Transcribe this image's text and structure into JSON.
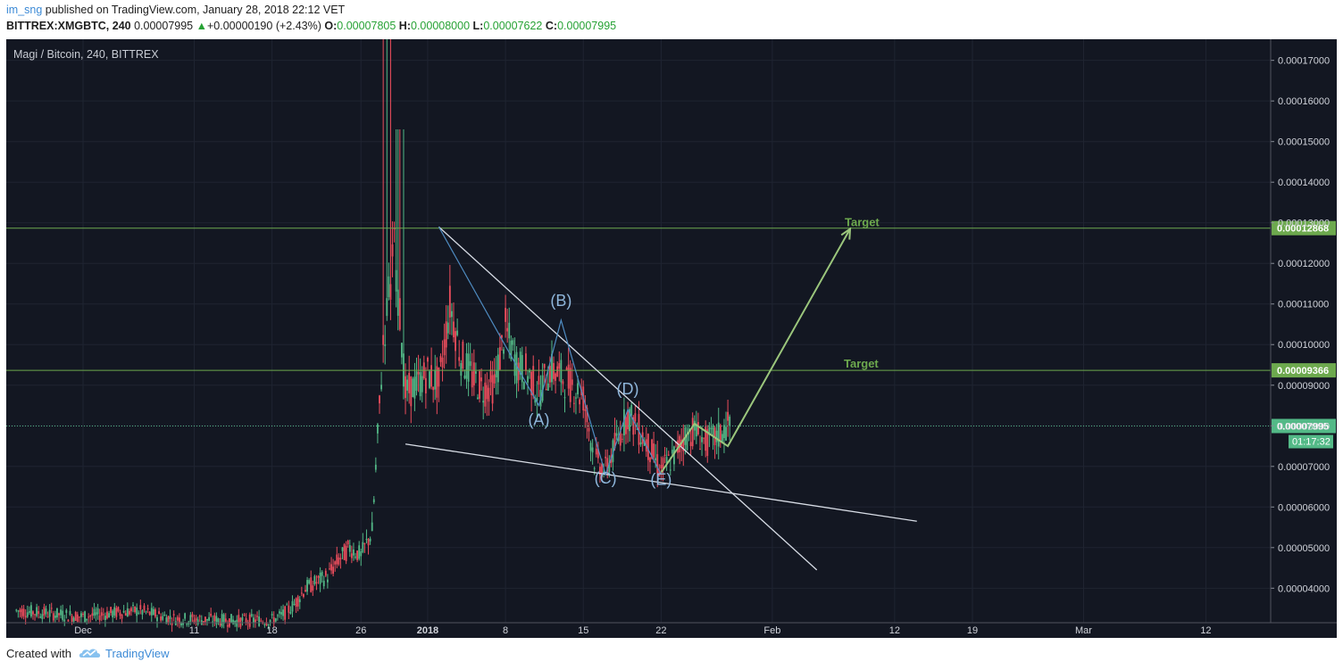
{
  "header": {
    "author": "im_sng",
    "published": "published on TradingView.com, January 28, 2018 22:12 VET",
    "symbol": "BITTREX:XMGBTC, 240",
    "last": "0.00007995",
    "change": "+0.00000190 (+2.43%)",
    "o_label": "O:",
    "o_value": "0.00007805",
    "h_label": "H:",
    "h_value": "0.00008000",
    "l_label": "L:",
    "l_value": "0.00007622",
    "c_label": "C:",
    "c_value": "0.00007995"
  },
  "footer": {
    "created_with": "Created with",
    "brand": "TradingView"
  },
  "colors": {
    "background": "#131722",
    "grid": "#1f2431",
    "up": "#53b987",
    "down": "#eb4d5c",
    "target_line": "#6da94e",
    "pattern_line": "#4f8cc2",
    "trend_line": "#d8dde6",
    "arrow": "#9bc67c"
  },
  "chart_data": {
    "type": "candlestick",
    "title": "Magi / Bitcoin, 240, BITTREX",
    "timeframe": "240",
    "y_ticks": [
      "0.00004000",
      "0.00005000",
      "0.00006000",
      "0.00007000",
      "0.00008000",
      "0.00009000",
      "0.00010000",
      "0.00011000",
      "0.00012000",
      "0.00013000",
      "0.00014000",
      "0.00015000",
      "0.00016000",
      "0.00017000"
    ],
    "y_range": [
      3.15e-05,
      0.0001752
    ],
    "x_labels": [
      {
        "label": "Dec",
        "date": "2017-12-01"
      },
      {
        "label": "11",
        "date": "2017-12-11"
      },
      {
        "label": "18",
        "date": "2017-12-18"
      },
      {
        "label": "26",
        "date": "2017-12-26"
      },
      {
        "label": "2018",
        "date": "2018-01-01"
      },
      {
        "label": "8",
        "date": "2018-01-08"
      },
      {
        "label": "15",
        "date": "2018-01-15"
      },
      {
        "label": "22",
        "date": "2018-01-22"
      },
      {
        "label": "Feb",
        "date": "2018-02-01"
      },
      {
        "label": "12",
        "date": "2018-02-12"
      },
      {
        "label": "19",
        "date": "2018-02-19"
      },
      {
        "label": "Mar",
        "date": "2018-03-01"
      },
      {
        "label": "12",
        "date": "2018-03-12"
      }
    ],
    "price_path": [
      [
        "2017-11-25",
        3.45e-05
      ],
      [
        "2017-11-29",
        3.35e-05
      ],
      [
        "2017-12-01",
        3.3e-05
      ],
      [
        "2017-12-04",
        3.4e-05
      ],
      [
        "2017-12-06",
        3.45e-05
      ],
      [
        "2017-12-09",
        3.25e-05
      ],
      [
        "2017-12-15",
        3.2e-05
      ],
      [
        "2017-12-18",
        3.22e-05
      ],
      [
        "2017-12-19",
        3.35e-05
      ],
      [
        "2017-12-20",
        3.6e-05
      ],
      [
        "2017-12-21",
        4e-05
      ],
      [
        "2017-12-23",
        4.3e-05
      ],
      [
        "2017-12-24",
        4.7e-05
      ],
      [
        "2017-12-25",
        5e-05
      ],
      [
        "2017-12-26",
        4.8e-05
      ],
      [
        "2017-12-27",
        5.4e-05
      ],
      [
        "2017-12-28",
        0.0001
      ],
      [
        "2017-12-29",
        0.000125
      ],
      [
        "2017-12-30",
        8.8e-05
      ],
      [
        "2017-12-31",
        9e-05
      ],
      [
        "2018-01-01",
        9.3e-05
      ],
      [
        "2018-01-02",
        9e-05
      ],
      [
        "2018-01-03",
        0.00011
      ],
      [
        "2018-01-04",
        9.7e-05
      ],
      [
        "2018-01-05",
        9.2e-05
      ],
      [
        "2018-01-06",
        8.9e-05
      ],
      [
        "2018-01-07",
        9e-05
      ],
      [
        "2018-01-08",
        0.000104
      ],
      [
        "2018-01-09",
        9.5e-05
      ],
      [
        "2018-01-10",
        9.3e-05
      ],
      [
        "2018-01-11",
        8.8e-05
      ],
      [
        "2018-01-12",
        9.4e-05
      ],
      [
        "2018-01-13",
        9.2e-05
      ],
      [
        "2018-01-14",
        9e-05
      ],
      [
        "2018-01-15",
        8.7e-05
      ],
      [
        "2018-01-16",
        7.2e-05
      ],
      [
        "2018-01-17",
        6.9e-05
      ],
      [
        "2018-01-18",
        7.6e-05
      ],
      [
        "2018-01-19",
        8.3e-05
      ],
      [
        "2018-01-20",
        7.9e-05
      ],
      [
        "2018-01-21",
        7.4e-05
      ],
      [
        "2018-01-22",
        6.9e-05
      ],
      [
        "2018-01-23",
        7.2e-05
      ],
      [
        "2018-01-24",
        7.7e-05
      ],
      [
        "2018-01-25",
        7.9e-05
      ],
      [
        "2018-01-26",
        7.6e-05
      ],
      [
        "2018-01-27",
        7.7e-05
      ],
      [
        "2018-01-28",
        8e-05
      ]
    ],
    "wick_high": [
      [
        "2017-12-28",
        0.0001752
      ],
      [
        "2017-12-29",
        0.000153
      ]
    ],
    "annotations": {
      "targets": [
        {
          "label": "Target",
          "value": "0.00012868",
          "price": 0.00012868
        },
        {
          "label": "Target",
          "value": "0.00009366",
          "price": 9.366e-05
        }
      ],
      "current_price": {
        "value": "0.00007995",
        "price": 7.995e-05,
        "countdown": "01:17:32"
      },
      "wave_labels": [
        {
          "label": "(A)",
          "date": "2018-01-11",
          "price": 8.02e-05
        },
        {
          "label": "(B)",
          "date": "2018-01-13",
          "price": 0.0001095
        },
        {
          "label": "(C)",
          "date": "2018-01-17",
          "price": 6.58e-05
        },
        {
          "label": "(D)",
          "date": "2018-01-19",
          "price": 8.77e-05
        },
        {
          "label": "(E)",
          "date": "2018-01-22",
          "price": 6.55e-05
        }
      ],
      "wave_path": [
        [
          "2018-01-02",
          0.000129
        ],
        [
          "2018-01-11",
          8.5e-05
        ],
        [
          "2018-01-13",
          0.000106
        ],
        [
          "2018-01-17",
          6.8e-05
        ],
        [
          "2018-01-19",
          8.4e-05
        ],
        [
          "2018-01-22",
          6.8e-05
        ]
      ],
      "upper_trendline": [
        [
          "2018-01-02",
          0.000129
        ],
        [
          "2018-02-05",
          4.45e-05
        ]
      ],
      "lower_trendline": [
        [
          "2017-12-30",
          7.55e-05
        ],
        [
          "2018-02-14",
          5.65e-05
        ]
      ],
      "projection": [
        [
          "2018-01-22",
          6.85e-05
        ],
        [
          "2018-01-25",
          8.05e-05
        ],
        [
          "2018-01-28",
          7.5e-05
        ],
        [
          "2018-02-08",
          0.0001285
        ]
      ]
    }
  }
}
